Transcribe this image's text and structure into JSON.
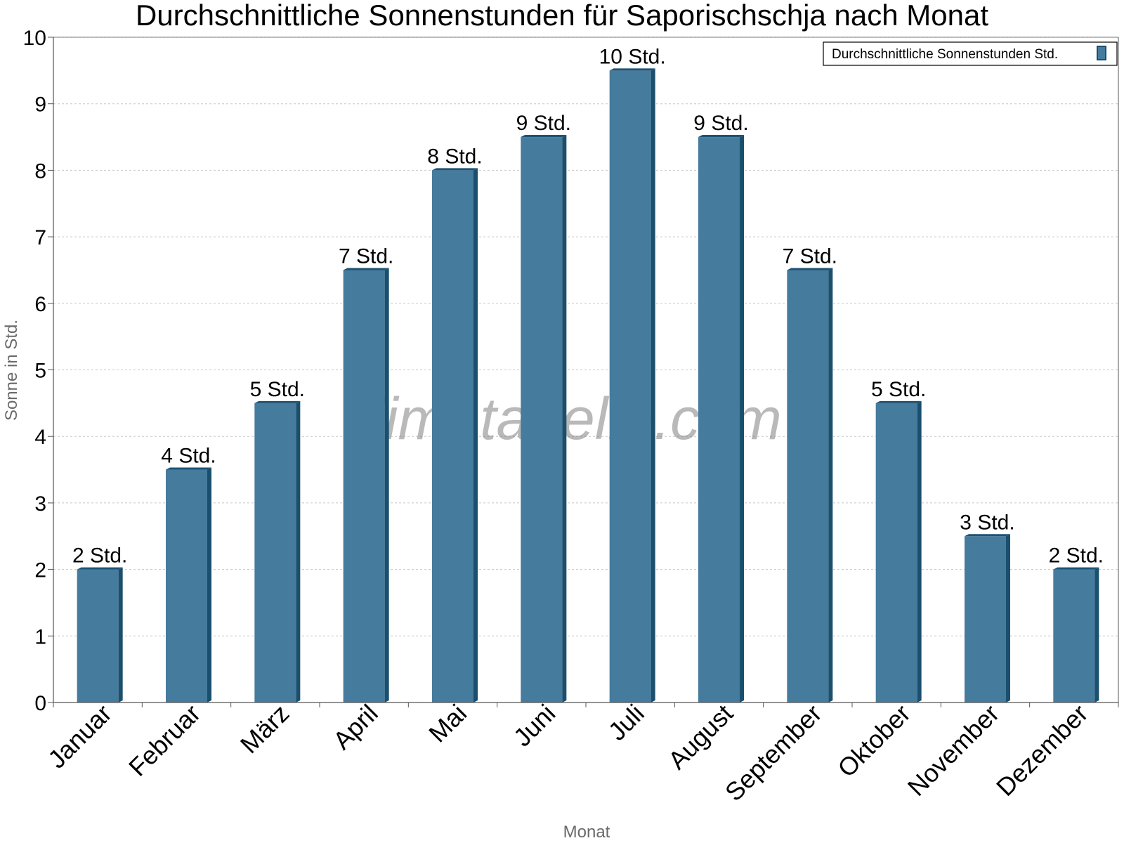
{
  "chart_data": {
    "type": "bar",
    "title": "Durchschnittliche Sonnenstunden für Saporischschja nach Monat",
    "xlabel": "Monat",
    "ylabel": "Sonne in Std.",
    "ylim": [
      0,
      10
    ],
    "yticks": [
      "0",
      "1",
      "2",
      "3",
      "4",
      "5",
      "6",
      "7",
      "8",
      "9",
      "10"
    ],
    "grid": true,
    "legend_position": "top-right",
    "categories": [
      "Januar",
      "Februar",
      "März",
      "April",
      "Mai",
      "Juni",
      "Juli",
      "August",
      "September",
      "Oktober",
      "November",
      "Dezember"
    ],
    "series": [
      {
        "name": "Durchschnittliche Sonnenstunden Std.",
        "values": [
          2,
          3.5,
          4.5,
          6.5,
          8,
          8.5,
          9.5,
          8.5,
          6.5,
          4.5,
          2.5,
          2
        ],
        "labels": [
          "2 Std.",
          "4 Std.",
          "5 Std.",
          "7 Std.",
          "8 Std.",
          "9 Std.",
          "10 Std.",
          "9 Std.",
          "7 Std.",
          "5 Std.",
          "3 Std.",
          "2 Std."
        ]
      }
    ]
  },
  "watermark": "klimatabelle.com",
  "colors": {
    "bar": "#457b9d",
    "bar_side": "#1b4f6e",
    "bar_top": "#1e5273",
    "grid": "#c8c8c8",
    "axis": "#555555"
  }
}
